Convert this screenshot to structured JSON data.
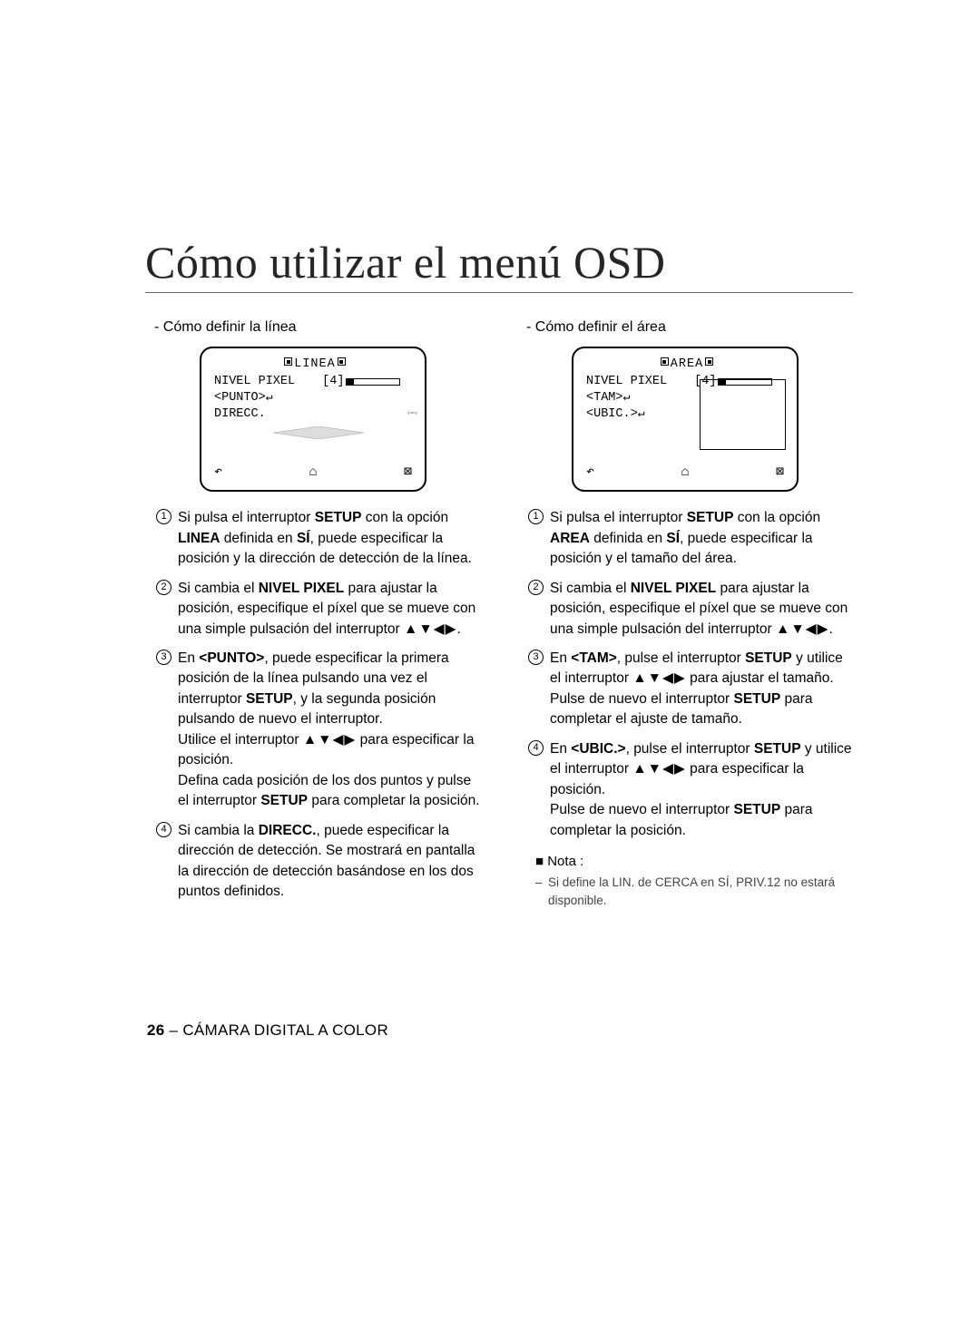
{
  "title": "Cómo utilizar el menú OSD",
  "footer": {
    "page": "26",
    "label": " – CÁMARA DIGITAL A COLOR"
  },
  "arrows_glyph": "▲▼◀▶",
  "left": {
    "subhead": "- Cómo definir la línea",
    "osd": {
      "title": "LINEA",
      "row1_label": "NIVEL PIXEL",
      "row1_value": "[4]",
      "row2": "<PUNTO>",
      "row3": "DIRECC.",
      "icons": {
        "back": "↶",
        "home": "⌂",
        "close": "⊠"
      }
    },
    "items": [
      {
        "n": "1",
        "html": "Si pulsa el interruptor <b>SETUP</b> con la opción <b>LINEA</b> definida en <b>SÍ</b>, puede especificar la posición y la dirección de detección de la línea."
      },
      {
        "n": "2",
        "html": "Si cambia el <b>NIVEL PIXEL</b> para ajustar la posición, especifique el píxel que se mueve con una simple pulsación del interruptor <span class='arrows'>▲▼◀▶</span>."
      },
      {
        "n": "3",
        "html": "En <b>&lt;PUNTO&gt;</b>, puede especificar la primera posición de la línea pulsando una vez el interruptor <b>SETUP</b>, y la segunda posición pulsando de nuevo el interruptor.<br>Utilice el interruptor <span class='arrows'>▲▼◀▶</span> para especificar la posición.<br>Defina cada posición de los dos puntos y pulse el interruptor <b>SETUP</b> para completar la posición."
      },
      {
        "n": "4",
        "html": "Si cambia la <b>DIRECC.</b>, puede especificar la dirección de detección. Se mostrará en pantalla la dirección de detección basándose en los dos puntos definidos."
      }
    ]
  },
  "right": {
    "subhead": "- Cómo definir el área",
    "osd": {
      "title": "AREA",
      "row1_label": "NIVEL PIXEL",
      "row1_value": "[4]",
      "row2": "<TAM>",
      "row3": "<UBIC.>",
      "icons": {
        "back": "↶",
        "home": "⌂",
        "close": "⊠"
      }
    },
    "items": [
      {
        "n": "1",
        "html": "Si pulsa el interruptor <b>SETUP</b> con la opción <b>AREA</b> definida en <b>SÍ</b>, puede especificar la posición y el tamaño del área."
      },
      {
        "n": "2",
        "html": "Si cambia el <b>NIVEL PIXEL</b> para ajustar la posición, especifique el píxel que se mueve con una simple pulsación del interruptor <span class='arrows'>▲▼◀▶</span>."
      },
      {
        "n": "3",
        "html": "En <b>&lt;TAM&gt;</b>, pulse el interruptor <b>SETUP</b> y utilice el interruptor <span class='arrows'>▲▼◀▶</span> para ajustar el tamaño. Pulse de nuevo el interruptor <b>SETUP</b> para completar el ajuste de tamaño."
      },
      {
        "n": "4",
        "html": "En <b>&lt;UBIC.&gt;</b>, pulse el interruptor <b>SETUP</b> y utilice el interruptor <span class='arrows'>▲▼◀▶</span> para especificar la posición.<br>Pulse de nuevo el interruptor <b>SETUP</b> para completar la posición."
      }
    ],
    "note_head": "■ Nota :",
    "note_body": "Si define la LIN. de CERCA en SÍ, PRIV.12 no estará disponible."
  }
}
